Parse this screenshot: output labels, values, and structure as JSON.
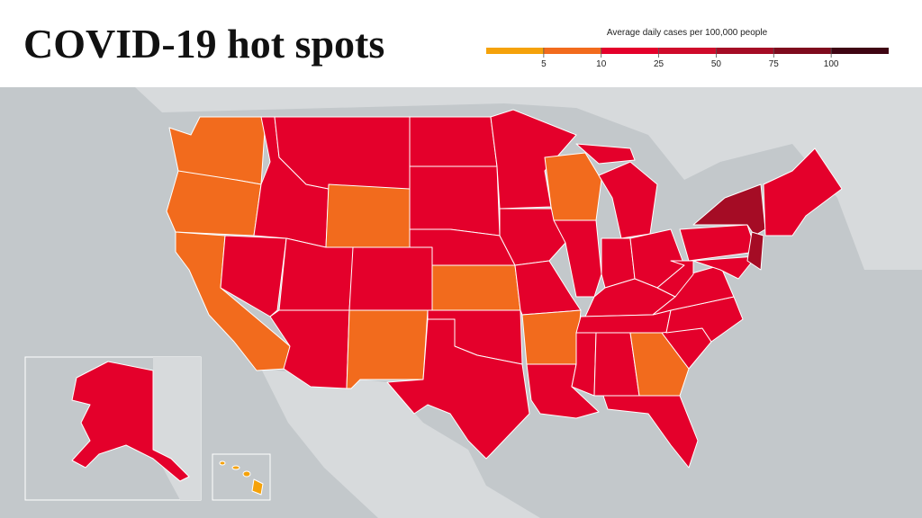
{
  "header": {
    "title": "COVID-19 hot spots"
  },
  "legend": {
    "title": "Average daily cases per 100,000 people",
    "colors": [
      "#f5a20a",
      "#f26b1d",
      "#e4002b",
      "#cf0b2b",
      "#a50c25",
      "#7e0a1d",
      "#3f0513"
    ],
    "ticks": [
      5,
      10,
      25,
      50,
      75,
      100
    ]
  }
}
